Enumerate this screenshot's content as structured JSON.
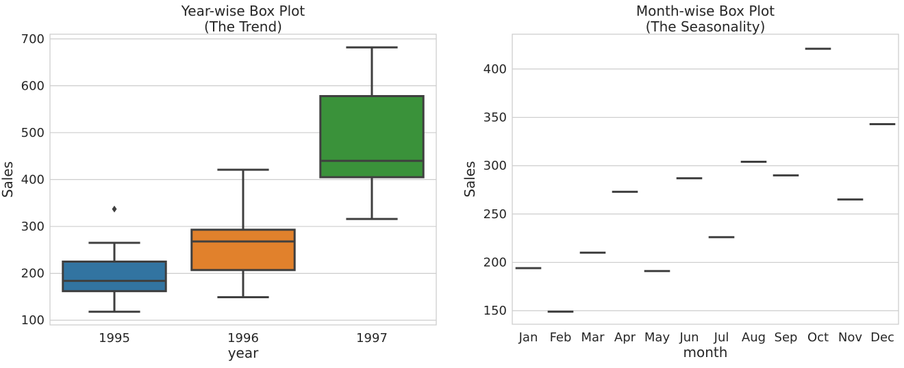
{
  "chart_data": [
    {
      "type": "box",
      "title_line1": "Year-wise Box Plot",
      "title_line2": "(The Trend)",
      "xlabel": "year",
      "ylabel": "Sales",
      "ylim": [
        90,
        710
      ],
      "yticks": [
        100,
        200,
        300,
        400,
        500,
        600,
        700
      ],
      "grid": true,
      "categories": [
        "1995",
        "1996",
        "1997"
      ],
      "colors": [
        "#3274a1",
        "#e1812c",
        "#3a923a"
      ],
      "boxes": [
        {
          "whisker_low": 118,
          "q1": 162,
          "median": 184,
          "q3": 225,
          "whisker_high": 265,
          "outliers": [
            337
          ]
        },
        {
          "whisker_low": 149,
          "q1": 207,
          "median": 268,
          "q3": 293,
          "whisker_high": 421,
          "outliers": []
        },
        {
          "whisker_low": 316,
          "q1": 405,
          "median": 440,
          "q3": 578,
          "whisker_high": 682,
          "outliers": []
        }
      ]
    },
    {
      "type": "box",
      "title_line1": "Month-wise Box Plot",
      "title_line2": "(The Seasonality)",
      "xlabel": "month",
      "ylabel": "Sales",
      "ylim": [
        136,
        436
      ],
      "yticks": [
        150,
        200,
        250,
        300,
        350,
        400
      ],
      "grid": true,
      "categories": [
        "Jan",
        "Feb",
        "Mar",
        "Apr",
        "May",
        "Jun",
        "Jul",
        "Aug",
        "Sep",
        "Oct",
        "Nov",
        "Dec"
      ],
      "values": [
        194,
        149,
        210,
        273,
        191,
        287,
        226,
        304,
        290,
        421,
        265,
        343
      ]
    }
  ]
}
